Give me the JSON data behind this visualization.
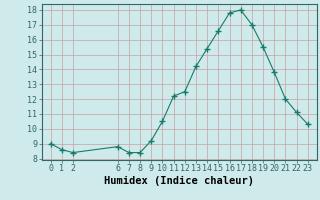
{
  "x": [
    0,
    1,
    2,
    6,
    7,
    8,
    9,
    10,
    11,
    12,
    13,
    14,
    15,
    16,
    17,
    18,
    19,
    20,
    21,
    22,
    23
  ],
  "y": [
    9.0,
    8.6,
    8.4,
    8.8,
    8.4,
    8.4,
    9.2,
    10.5,
    12.2,
    12.5,
    14.2,
    15.4,
    16.6,
    17.8,
    18.0,
    17.0,
    15.5,
    13.8,
    12.0,
    11.1,
    10.3
  ],
  "line_color": "#1a7a6a",
  "marker": "+",
  "marker_size": 4,
  "bg_color": "#ceeaea",
  "grid_color_major": "#c8a0a0",
  "xlabel": "Humidex (Indice chaleur)",
  "xlabel_fontsize": 7.5,
  "ylim": [
    7.9,
    18.4
  ],
  "yticks": [
    8,
    9,
    10,
    11,
    12,
    13,
    14,
    15,
    16,
    17,
    18
  ],
  "xticks": [
    0,
    1,
    2,
    6,
    7,
    8,
    9,
    10,
    11,
    12,
    13,
    14,
    15,
    16,
    17,
    18,
    19,
    20,
    21,
    22,
    23
  ],
  "xlim": [
    -0.8,
    23.8
  ],
  "tick_fontsize": 6.0
}
